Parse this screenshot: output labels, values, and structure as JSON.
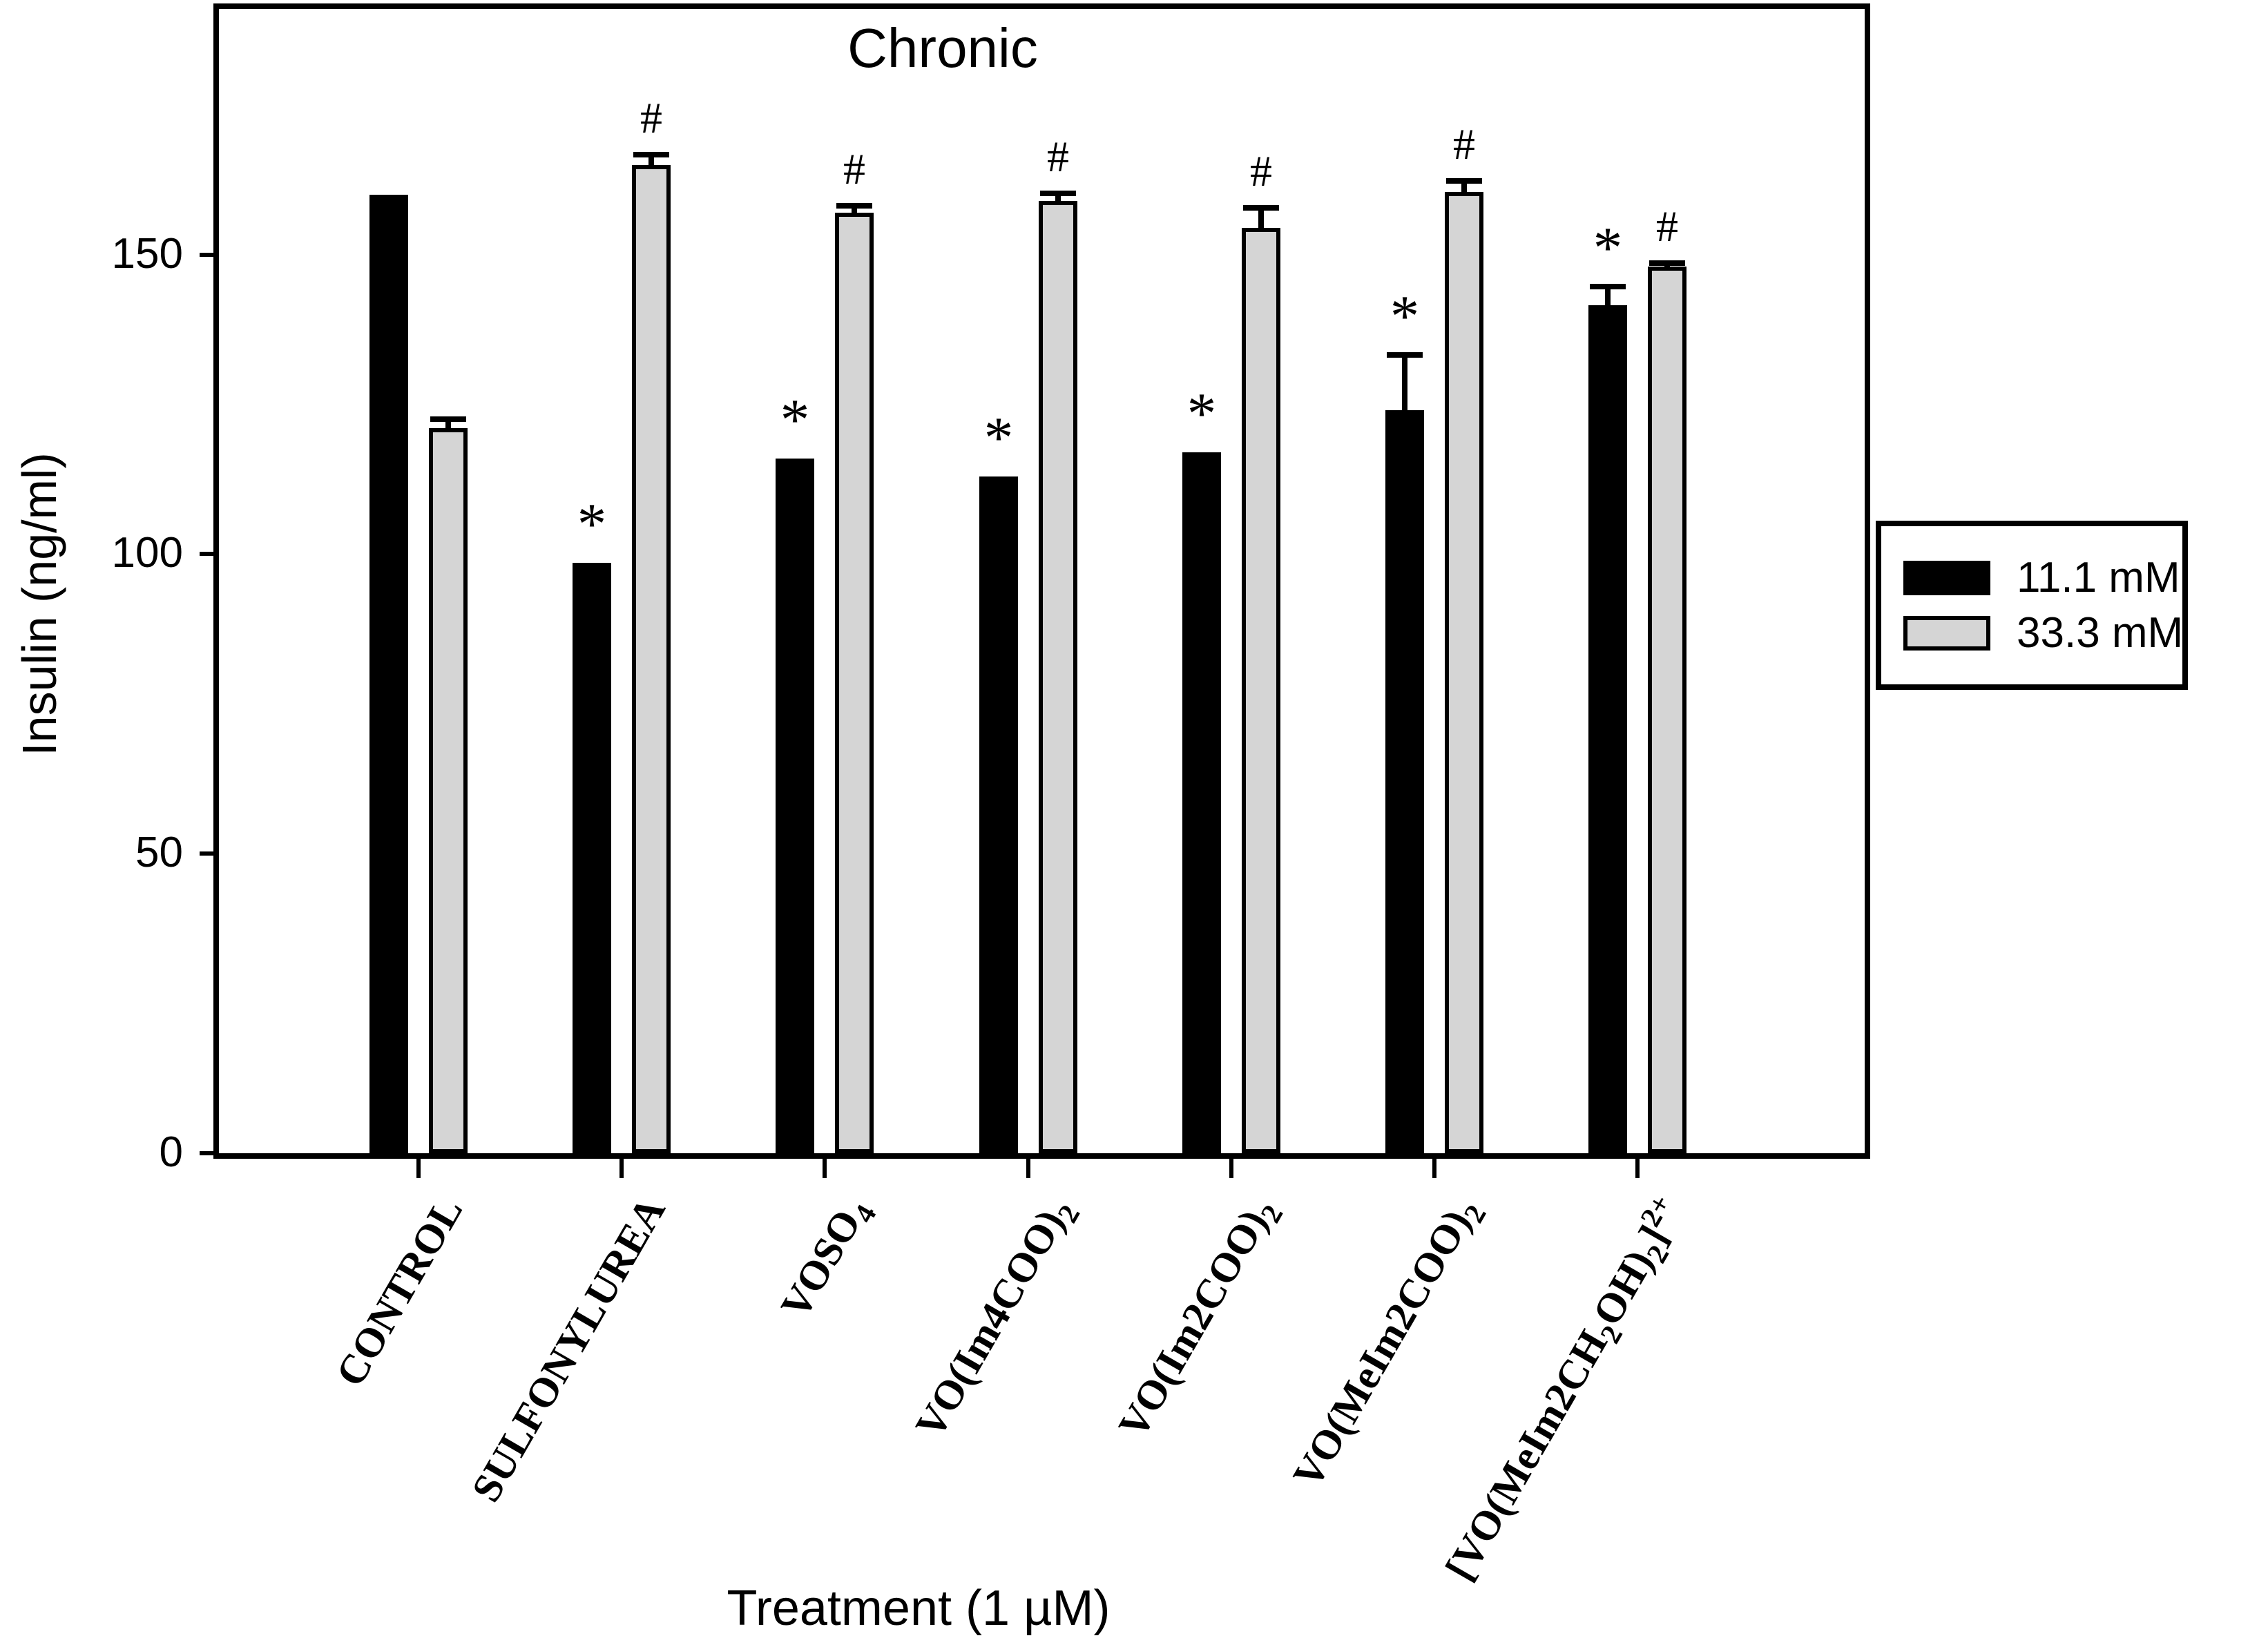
{
  "chart_data": {
    "type": "bar",
    "title": "Chronic",
    "xlabel": "Treatment (1 µM)",
    "ylabel": "Insulin (ng/ml)",
    "ylim": [
      0,
      191
    ],
    "yticks": [
      0,
      50,
      100,
      150
    ],
    "grid": false,
    "legend_position": "right-outside",
    "categories": [
      "CONTROL",
      "SULFONYLUREA",
      "VOSO4",
      "VO(Im4COO)2",
      "VO(Im2COO)2",
      "VO(MeIm2COO)2",
      "[VO(MeIm2CH2OH)2]2+"
    ],
    "categories_html": [
      "CONTROL",
      "SULFONYLUREA",
      "VOSO<sub>4</sub>",
      "VO(Im4COO)<sub>2</sub>",
      "VO(Im2COO)<sub>2</sub>",
      "VO(MeIm2COO)<sub>2</sub>",
      "[VO(MeIm2CH<sub>2</sub>OH)<sub>2</sub>]<sup>2+</sup>"
    ],
    "series": [
      {
        "name": "11.1 mM",
        "color": "#000000",
        "values": [
          160,
          98.5,
          116,
          113,
          117,
          124,
          141.5
        ],
        "errors": [
          0,
          0,
          0,
          0,
          0,
          9.3,
          3.2
        ],
        "marker": "*",
        "marked": [
          false,
          true,
          true,
          true,
          true,
          true,
          true
        ]
      },
      {
        "name": "33.3 mM",
        "color": "#d5d5d5",
        "values": [
          121,
          165,
          157,
          159,
          154.5,
          160.5,
          148
        ],
        "errors": [
          1.5,
          1.7,
          1.2,
          1.2,
          3.3,
          1.8,
          0.6
        ],
        "marker": "#",
        "marked": [
          false,
          true,
          true,
          true,
          true,
          true,
          true
        ]
      }
    ]
  }
}
